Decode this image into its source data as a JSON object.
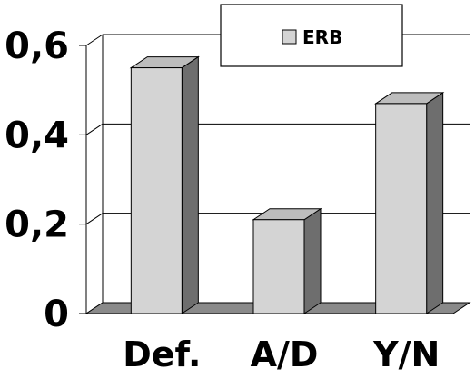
{
  "chart_data": {
    "type": "bar",
    "categories": [
      "Def.",
      "A/D",
      "Y/N"
    ],
    "series": [
      {
        "name": "ERB",
        "values": [
          0.55,
          0.21,
          0.47
        ]
      }
    ],
    "ylim": [
      0,
      0.6
    ],
    "yticks": [
      0,
      0.2,
      0.4,
      0.6
    ],
    "ytick_labels": [
      "0",
      "0,2",
      "0,4",
      "0,6"
    ],
    "grid": true,
    "legend_position": "top-right",
    "style_3d": true
  },
  "colors": {
    "bar_front": "#d4d4d4",
    "bar_side": "#6e6e6e",
    "bar_top": "#bdbdbd",
    "floor": "#8a8a8a",
    "grid": "#000000"
  }
}
